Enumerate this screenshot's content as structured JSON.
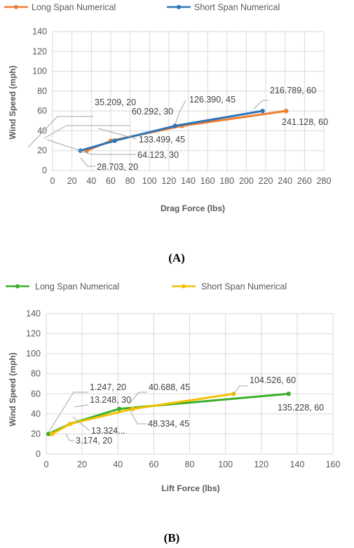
{
  "chart_data": [
    {
      "type": "line",
      "caption": "(A)",
      "xlabel": "Drag Force (lbs)",
      "ylabel": "Wind Speed (mph)",
      "xlim": [
        0,
        280
      ],
      "ylim": [
        0,
        140
      ],
      "xticks": [
        "0",
        "20",
        "40",
        "60",
        "80",
        "100",
        "120",
        "140",
        "160",
        "180",
        "200",
        "220",
        "240",
        "260",
        "280"
      ],
      "yticks": [
        "0",
        "20",
        "40",
        "60",
        "80",
        "100",
        "120",
        "140"
      ],
      "grid": true,
      "legend_position": "top",
      "series": [
        {
          "name": "Long Span Numerical",
          "color": "#ED7D31",
          "points": [
            {
              "x": 35.209,
              "y": 20,
              "label": "35.209, 20"
            },
            {
              "x": 60.292,
              "y": 30,
              "label": "60.292, 30"
            },
            {
              "x": 133.499,
              "y": 45,
              "label": "133.499, 45"
            },
            {
              "x": 241.128,
              "y": 60,
              "label": "241.128, 60"
            }
          ]
        },
        {
          "name": "Short Span Numerical",
          "color": "#2E75B6",
          "points": [
            {
              "x": 28.703,
              "y": 20,
              "label": "28.703, 20"
            },
            {
              "x": 64.123,
              "y": 30,
              "label": "64.123, 30"
            },
            {
              "x": 126.39,
              "y": 45,
              "label": "126.390, 45"
            },
            {
              "x": 216.789,
              "y": 60,
              "label": "216.789, 60"
            }
          ]
        }
      ]
    },
    {
      "type": "line",
      "caption": "(B)",
      "xlabel": "Lift Force (lbs)",
      "ylabel": "Wind Speed (mph)",
      "xlim": [
        0,
        160
      ],
      "ylim": [
        0,
        140
      ],
      "xticks": [
        "0",
        "20",
        "40",
        "60",
        "80",
        "100",
        "120",
        "140",
        "160"
      ],
      "yticks": [
        "0",
        "20",
        "40",
        "60",
        "80",
        "100",
        "120",
        "140"
      ],
      "grid": true,
      "legend_position": "top",
      "series": [
        {
          "name": "Long Span Numerical",
          "color": "#3DAE2B",
          "points": [
            {
              "x": 1.247,
              "y": 20,
              "label": "1.247, 20"
            },
            {
              "x": 13.248,
              "y": 30,
              "label": "13.248, 30"
            },
            {
              "x": 40.688,
              "y": 45,
              "label": "40.688, 45"
            },
            {
              "x": 135.228,
              "y": 60,
              "label": "135.228, 60"
            }
          ]
        },
        {
          "name": "Short Span Numerical",
          "color": "#F5C000",
          "points": [
            {
              "x": 3.174,
              "y": 20,
              "label": "3.174, 20"
            },
            {
              "x": 13.324,
              "y": 30,
              "label": "13.324..."
            },
            {
              "x": 48.334,
              "y": 45,
              "label": "48.334, 45"
            },
            {
              "x": 104.526,
              "y": 60,
              "label": "104.526, 60"
            }
          ]
        }
      ]
    }
  ]
}
